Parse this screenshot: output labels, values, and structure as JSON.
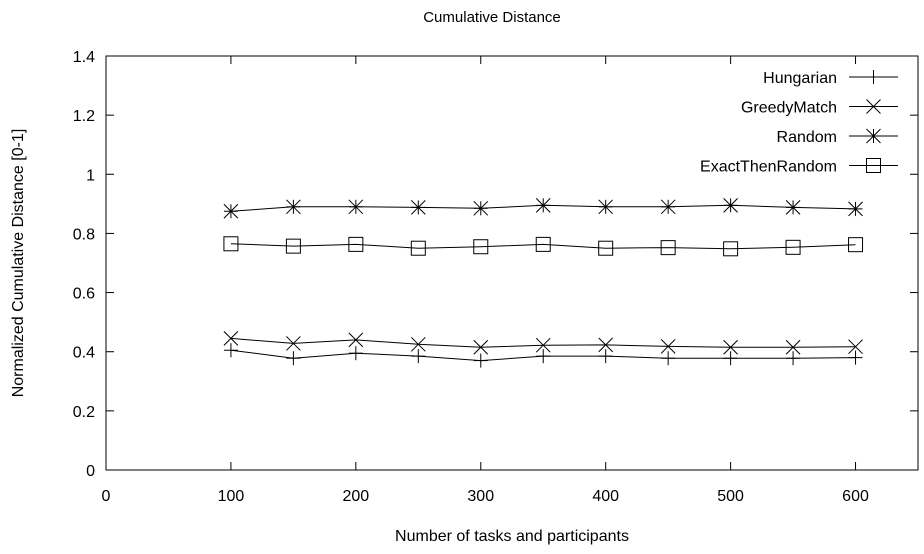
{
  "chart_data": {
    "type": "line",
    "title": "Cumulative Distance",
    "xlabel": "Number of tasks and participants",
    "ylabel": "Normalized Cumulative Distance [0-1]",
    "xlim": [
      0,
      650
    ],
    "ylim": [
      0,
      1.4
    ],
    "xticks": [
      0,
      100,
      200,
      300,
      400,
      500,
      600
    ],
    "xtick_labels": [
      "0",
      "100",
      "200",
      "300",
      "400",
      "500",
      "600"
    ],
    "yticks": [
      0,
      0.2,
      0.4,
      0.6,
      0.8,
      1.0,
      1.2,
      1.4
    ],
    "ytick_labels": [
      "0",
      "0.2",
      "0.4",
      "0.6",
      "0.8",
      "1",
      "1.2",
      "1.4"
    ],
    "grid": false,
    "legend_position": "top-right",
    "x": [
      100,
      150,
      200,
      250,
      300,
      350,
      400,
      450,
      500,
      550,
      600
    ],
    "series": [
      {
        "name": "Hungarian",
        "marker": "plus",
        "values": [
          0.405,
          0.378,
          0.395,
          0.385,
          0.37,
          0.385,
          0.385,
          0.378,
          0.378,
          0.378,
          0.38
        ]
      },
      {
        "name": "GreedyMatch",
        "marker": "cross",
        "values": [
          0.445,
          0.428,
          0.44,
          0.425,
          0.415,
          0.422,
          0.423,
          0.418,
          0.415,
          0.415,
          0.417
        ]
      },
      {
        "name": "Random",
        "marker": "star",
        "values": [
          0.875,
          0.89,
          0.89,
          0.888,
          0.885,
          0.895,
          0.89,
          0.89,
          0.895,
          0.888,
          0.883
        ]
      },
      {
        "name": "ExactThenRandom",
        "marker": "square",
        "values": [
          0.765,
          0.757,
          0.763,
          0.75,
          0.755,
          0.763,
          0.75,
          0.752,
          0.748,
          0.753,
          0.762
        ]
      }
    ]
  }
}
